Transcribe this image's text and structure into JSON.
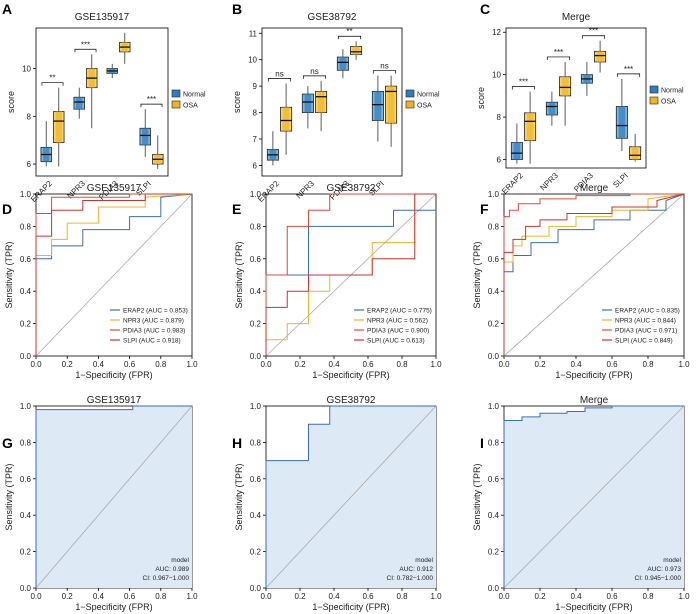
{
  "colors": {
    "normal": "#2e7fc1",
    "normal_light": "#7fb2dc",
    "osa": "#f2b31c",
    "osa_light": "#f6d36e",
    "erap2": "#3a6fb6",
    "npr3": "#e8b630",
    "pdia3": "#d94b3f",
    "slpi": "#c9342d",
    "diag": "#aaaaaa",
    "roc_fill": "#dde9f5"
  },
  "panel_labels": [
    "A",
    "B",
    "C",
    "D",
    "E",
    "F",
    "G",
    "H",
    "I"
  ],
  "genes": [
    "ERAP2",
    "NPR3",
    "PDIA3",
    "SLPI"
  ],
  "legend_groups": [
    "Normal",
    "OSA"
  ],
  "chart_data": [
    {
      "panel": "A",
      "type": "box",
      "title": "GSE135917",
      "ylabel": "score",
      "ylim": [
        5.5,
        11.7
      ],
      "yticks": [
        6,
        8,
        10
      ],
      "categories": [
        "ERAP2",
        "NPR3",
        "PDIA3",
        "SLPI"
      ],
      "series": [
        {
          "name": "Normal",
          "boxes": [
            [
              5.9,
              6.1,
              6.4,
              6.7,
              7.8
            ],
            [
              7.9,
              8.3,
              8.6,
              8.8,
              9.2
            ],
            [
              9.6,
              9.8,
              9.9,
              10.0,
              10.2
            ],
            [
              6.3,
              6.8,
              7.2,
              7.5,
              8.3
            ]
          ]
        },
        {
          "name": "OSA",
          "boxes": [
            [
              5.9,
              6.9,
              7.8,
              8.2,
              9.2
            ],
            [
              7.5,
              9.2,
              9.6,
              10.0,
              10.6
            ],
            [
              10.2,
              10.7,
              10.9,
              11.1,
              11.5
            ],
            [
              5.8,
              6.0,
              6.2,
              6.4,
              7.2
            ]
          ]
        }
      ],
      "significance": [
        "**",
        "***",
        "",
        "***"
      ]
    },
    {
      "panel": "B",
      "type": "box",
      "title": "GSE38792",
      "ylabel": "score",
      "ylim": [
        5.6,
        11.2
      ],
      "yticks": [
        6,
        7,
        8,
        9,
        10,
        11
      ],
      "categories": [
        "ERAP2",
        "NPR3",
        "PDIA3",
        "SLPI"
      ],
      "series": [
        {
          "name": "Normal",
          "boxes": [
            [
              6.0,
              6.2,
              6.4,
              6.6,
              7.3
            ],
            [
              7.4,
              8.0,
              8.4,
              8.7,
              9.0
            ],
            [
              9.3,
              9.6,
              9.9,
              10.1,
              10.4
            ],
            [
              6.9,
              7.7,
              8.3,
              8.8,
              9.4
            ]
          ]
        },
        {
          "name": "OSA",
          "boxes": [
            [
              6.4,
              7.3,
              7.7,
              8.2,
              9.1
            ],
            [
              7.3,
              8.0,
              8.6,
              8.8,
              9.2
            ],
            [
              10.0,
              10.2,
              10.3,
              10.5,
              10.7
            ],
            [
              6.7,
              7.6,
              8.8,
              9.0,
              9.4
            ]
          ]
        }
      ],
      "significance": [
        "ns",
        "ns",
        "**",
        "ns"
      ]
    },
    {
      "panel": "C",
      "type": "box",
      "title": "Merge",
      "ylabel": "score",
      "ylim": [
        5.6,
        12.2
      ],
      "yticks": [
        6,
        8,
        10,
        12
      ],
      "categories": [
        "ERAP2",
        "NPR3",
        "PDIA3",
        "SLPI"
      ],
      "series": [
        {
          "name": "Normal",
          "boxes": [
            [
              5.8,
              6.0,
              6.3,
              6.8,
              7.7
            ],
            [
              7.6,
              8.1,
              8.5,
              8.7,
              9.2
            ],
            [
              9.0,
              9.6,
              9.8,
              10.0,
              10.6
            ],
            [
              6.4,
              7.0,
              7.6,
              8.5,
              9.8
            ]
          ]
        },
        {
          "name": "OSA",
          "boxes": [
            [
              5.8,
              6.9,
              7.8,
              8.2,
              9.2
            ],
            [
              7.6,
              9.0,
              9.4,
              9.9,
              10.6
            ],
            [
              10.1,
              10.6,
              10.9,
              11.1,
              11.6
            ],
            [
              5.9,
              6.0,
              6.2,
              6.6,
              7.2
            ]
          ]
        }
      ],
      "significance": [
        "***",
        "***",
        "***",
        "***"
      ]
    },
    {
      "panel": "D",
      "type": "line",
      "title": "GSE135917",
      "xlabel": "1−Specificity (FPR)",
      "ylabel": "Sensitivity (TPR)",
      "legend": [
        "ERAP2 (AUC = 0.853)",
        "NPR3 (AUC = 0.879)",
        "PDIA3 (AUC = 0.983)",
        "SLPI (AUC = 0.918)"
      ],
      "series": [
        {
          "name": "ERAP2",
          "x": [
            0,
            0,
            0.1,
            0.1,
            0.3,
            0.3,
            0.6,
            0.6,
            0.8,
            0.8,
            1
          ],
          "y": [
            0,
            0.6,
            0.6,
            0.68,
            0.68,
            0.78,
            0.78,
            0.86,
            0.86,
            0.98,
            1
          ]
        },
        {
          "name": "NPR3",
          "x": [
            0,
            0,
            0.1,
            0.1,
            0.2,
            0.2,
            0.4,
            0.4,
            0.7,
            0.7,
            1
          ],
          "y": [
            0,
            0.62,
            0.62,
            0.72,
            0.72,
            0.82,
            0.82,
            0.92,
            0.92,
            0.98,
            1
          ]
        },
        {
          "name": "PDIA3",
          "x": [
            0,
            0,
            0.1,
            0.1,
            0.6,
            0.6,
            1
          ],
          "y": [
            0,
            0.88,
            0.88,
            0.98,
            0.98,
            1,
            1
          ]
        },
        {
          "name": "SLPI",
          "x": [
            0,
            0,
            0.1,
            0.1,
            0.3,
            0.3,
            0.7,
            0.7,
            1
          ],
          "y": [
            0,
            0.74,
            0.74,
            0.9,
            0.9,
            0.96,
            0.96,
            1,
            1
          ]
        }
      ]
    },
    {
      "panel": "E",
      "type": "line",
      "title": "GSE38792",
      "xlabel": "1−Specificity (FPR)",
      "ylabel": "Sensitivity (TPR)",
      "legend": [
        "ERAP2 (AUC = 0.775)",
        "NPR3 (AUC = 0.562)",
        "PDIA3 (AUC = 0.900)",
        "SLPI (AUC = 0.613)"
      ],
      "series": [
        {
          "name": "ERAP2",
          "x": [
            0,
            0,
            0.25,
            0.25,
            0.75,
            0.75,
            1
          ],
          "y": [
            0,
            0.5,
            0.5,
            0.8,
            0.8,
            0.9,
            0.9
          ]
        },
        {
          "name": "NPR3",
          "x": [
            0,
            0,
            0.125,
            0.125,
            0.25,
            0.25,
            0.375,
            0.375,
            0.625,
            0.625,
            0.875,
            0.875,
            1
          ],
          "y": [
            0,
            0.1,
            0.1,
            0.2,
            0.2,
            0.4,
            0.4,
            0.5,
            0.5,
            0.7,
            0.7,
            1,
            1
          ]
        },
        {
          "name": "PDIA3",
          "x": [
            0,
            0,
            0.125,
            0.125,
            0.25,
            0.25,
            0.375,
            0.375,
            1
          ],
          "y": [
            0,
            0.5,
            0.5,
            0.8,
            0.8,
            0.9,
            0.9,
            1,
            1
          ]
        },
        {
          "name": "SLPI",
          "x": [
            0,
            0,
            0.125,
            0.125,
            0.25,
            0.25,
            0.625,
            0.625,
            0.875,
            0.875,
            1
          ],
          "y": [
            0,
            0.3,
            0.3,
            0.4,
            0.4,
            0.5,
            0.5,
            0.6,
            0.6,
            1,
            1
          ]
        }
      ]
    },
    {
      "panel": "F",
      "type": "line",
      "title": "Merge",
      "xlabel": "1−Specificity (FPR)",
      "ylabel": "Sensitivity (TPR)",
      "legend": [
        "ERAP2 (AUC = 0.835)",
        "NPR3 (AUC = 0.844)",
        "PDIA3 (AUC = 0.971)",
        "SLPI (AUC = 0.849)"
      ],
      "series": [
        {
          "name": "ERAP2",
          "x": [
            0,
            0,
            0.05,
            0.05,
            0.15,
            0.15,
            0.3,
            0.3,
            0.5,
            0.5,
            0.7,
            0.7,
            0.9,
            0.9,
            1
          ],
          "y": [
            0,
            0.52,
            0.52,
            0.62,
            0.62,
            0.7,
            0.7,
            0.78,
            0.78,
            0.84,
            0.84,
            0.9,
            0.9,
            0.96,
            1
          ]
        },
        {
          "name": "NPR3",
          "x": [
            0,
            0,
            0.05,
            0.05,
            0.1,
            0.1,
            0.25,
            0.25,
            0.4,
            0.4,
            0.6,
            0.6,
            0.8,
            0.8,
            1
          ],
          "y": [
            0,
            0.58,
            0.58,
            0.68,
            0.68,
            0.74,
            0.74,
            0.8,
            0.8,
            0.86,
            0.86,
            0.9,
            0.9,
            0.97,
            1
          ]
        },
        {
          "name": "PDIA3",
          "x": [
            0,
            0,
            0.03,
            0.03,
            0.08,
            0.08,
            0.2,
            0.2,
            0.4,
            0.4,
            0.7,
            0.7,
            1
          ],
          "y": [
            0,
            0.86,
            0.86,
            0.9,
            0.9,
            0.94,
            0.94,
            0.97,
            0.97,
            0.99,
            0.99,
            1,
            1
          ]
        },
        {
          "name": "SLPI",
          "x": [
            0,
            0,
            0.05,
            0.05,
            0.12,
            0.12,
            0.2,
            0.2,
            0.35,
            0.35,
            0.6,
            0.6,
            0.85,
            0.85,
            1
          ],
          "y": [
            0,
            0.64,
            0.64,
            0.72,
            0.72,
            0.8,
            0.8,
            0.84,
            0.84,
            0.88,
            0.88,
            0.92,
            0.92,
            0.96,
            1
          ]
        }
      ]
    },
    {
      "panel": "G",
      "type": "area",
      "title": "GSE135917",
      "xlabel": "1−Specificity (FPR)",
      "ylabel": "Sensitivity (TPR)",
      "legend": [
        "model",
        "AUC: 0.989",
        "CI: 0.967−1.000"
      ],
      "series": [
        {
          "name": "model",
          "x": [
            0,
            0,
            0.62,
            0.62,
            1
          ],
          "y": [
            0,
            0.98,
            0.98,
            1,
            1
          ]
        }
      ]
    },
    {
      "panel": "H",
      "type": "area",
      "title": "GSE38792",
      "xlabel": "1−Specificity (FPR)",
      "ylabel": "Sensitivity (TPR)",
      "legend": [
        "model",
        "AUC: 0.912",
        "CI: 0.782−1.000"
      ],
      "series": [
        {
          "name": "model",
          "x": [
            0,
            0,
            0.25,
            0.25,
            0.375,
            0.375,
            1
          ],
          "y": [
            0,
            0.7,
            0.7,
            0.9,
            0.9,
            1,
            1
          ]
        }
      ]
    },
    {
      "panel": "I",
      "type": "area",
      "title": "Merge",
      "xlabel": "1−Specificity (FPR)",
      "ylabel": "Sensitivity (TPR)",
      "legend": [
        "model",
        "AUC: 0.973",
        "CI: 0.945−1.000"
      ],
      "series": [
        {
          "name": "model",
          "x": [
            0,
            0,
            0.1,
            0.1,
            0.2,
            0.2,
            0.35,
            0.35,
            0.45,
            0.45,
            0.6,
            0.6,
            1
          ],
          "y": [
            0,
            0.92,
            0.92,
            0.94,
            0.94,
            0.96,
            0.96,
            0.97,
            0.97,
            0.99,
            0.99,
            1,
            1
          ]
        }
      ]
    }
  ],
  "roc_ticks": [
    "0.0",
    "0.2",
    "0.4",
    "0.6",
    "0.8",
    "1.0"
  ]
}
